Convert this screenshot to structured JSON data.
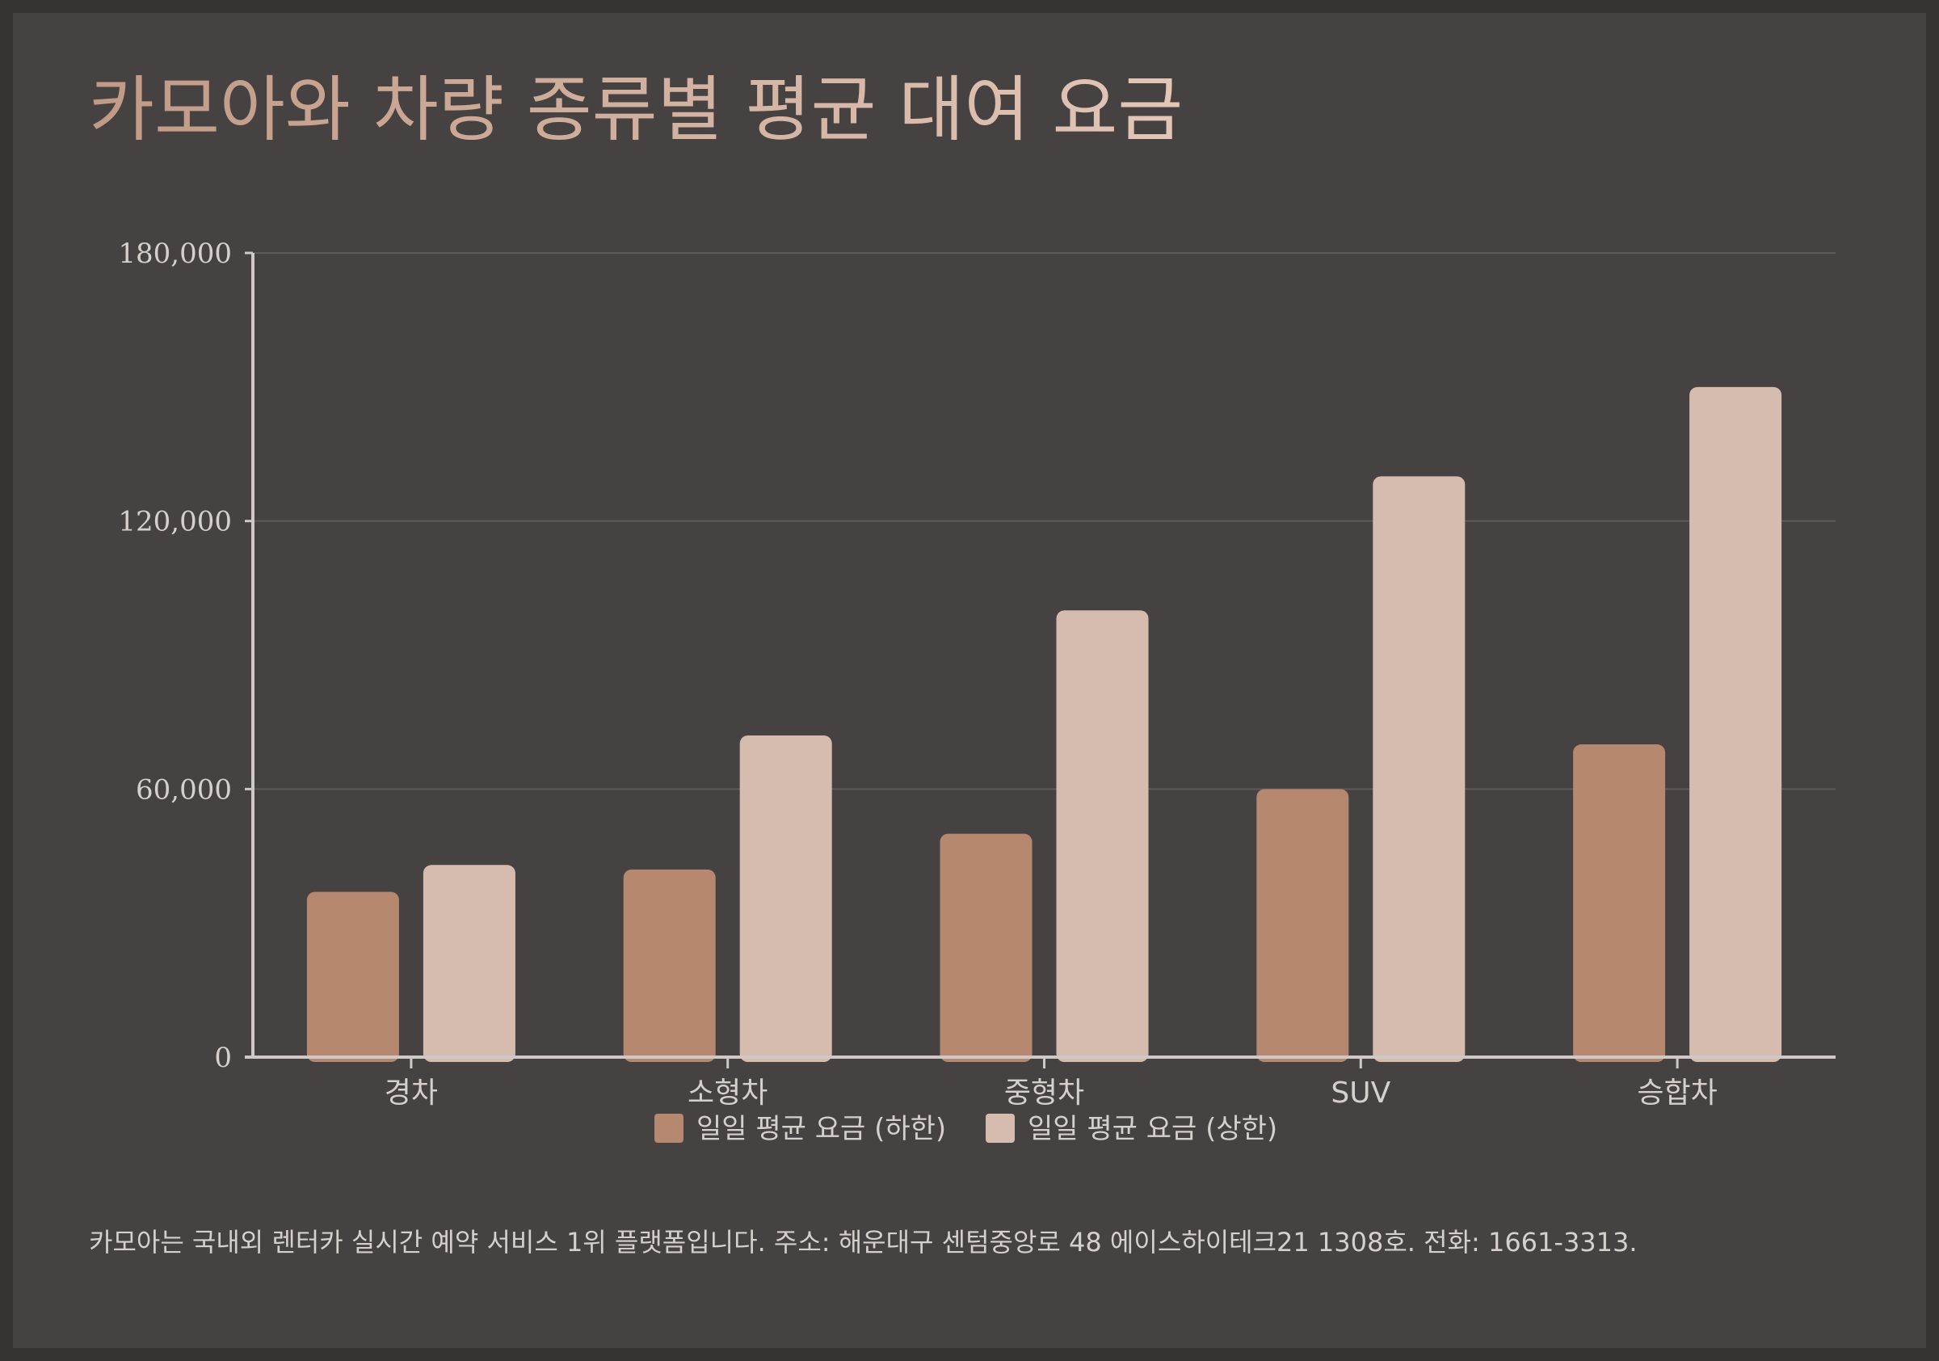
{
  "colors": {
    "background": "#363432",
    "panel": "#464241",
    "series_low": "#b5886f",
    "series_high": "#d6bcaf",
    "axis": "#cfc8c6",
    "grid": "#5f5a58",
    "text": "#d6cfcc"
  },
  "title": "카모아와 차량 종류별 평균 대여 요금",
  "footer": "카모아는 국내외 렌터카 실시간 예약 서비스 1위 플랫폼입니다. 주소: 해운대구 센텀중앙로 48 에이스하이테크21 1308호. 전화: 1661-3313.",
  "chart_data": {
    "type": "bar",
    "categories": [
      "경차",
      "소형차",
      "중형차",
      "SUV",
      "승합차"
    ],
    "series": [
      {
        "name": "일일 평균 요금 (하한)",
        "values": [
          37000,
          42000,
          50000,
          60000,
          70000
        ]
      },
      {
        "name": "일일 평균 요금 (상한)",
        "values": [
          43000,
          72000,
          100000,
          130000,
          150000
        ]
      }
    ],
    "ylim": [
      0,
      180000
    ],
    "yticks": [
      0,
      60000,
      120000,
      180000
    ],
    "ytick_labels": [
      "0",
      "60,000",
      "120,000",
      "180,000"
    ],
    "grid": true,
    "legend_position": "bottom-center"
  }
}
